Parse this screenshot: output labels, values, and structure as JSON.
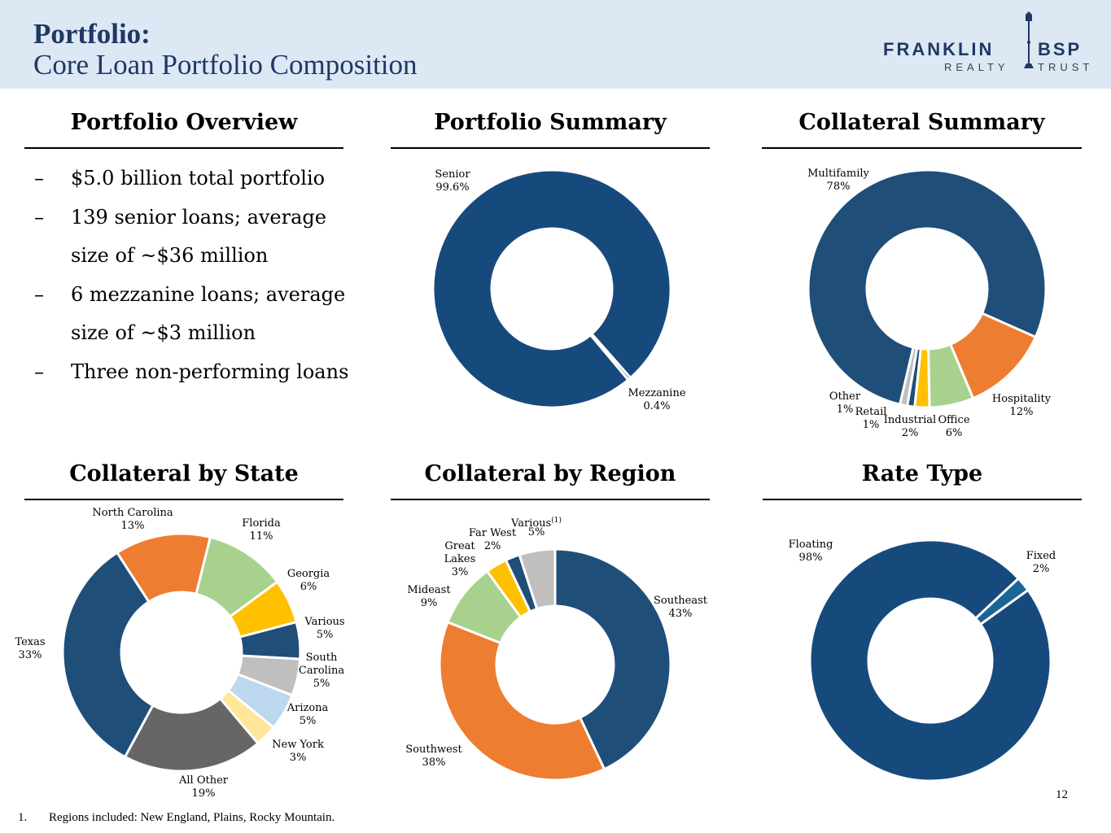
{
  "header": {
    "title_line1": "Portfolio:",
    "title_line2": "Core Loan Portfolio Composition",
    "logo_left": "FRANKLIN",
    "logo_right": "BSP",
    "logo_sub_left": "REALTY",
    "logo_sub_right": "TRUST"
  },
  "overview": {
    "title": "Portfolio Overview",
    "bullets": [
      "$5.0 billion total portfolio",
      "139 senior loans; average size of ~$36 million",
      "6 mezzanine loans; average size of ~$3 million",
      "Three non-performing loans"
    ],
    "dash": "–"
  },
  "chart_data": [
    {
      "id": "portfolio-summary",
      "type": "pie",
      "title": "Portfolio Summary",
      "slices": [
        {
          "label": [
            "Senior",
            "99.6%"
          ],
          "value": 99.6,
          "color": "#174a7c"
        },
        {
          "label": [
            "Mezzanine",
            "0.4%"
          ],
          "value": 0.4,
          "color": "#174a7c"
        }
      ]
    },
    {
      "id": "collateral-summary",
      "type": "pie",
      "title": "Collateral Summary",
      "slices": [
        {
          "label": [
            "Multifamily",
            "78%"
          ],
          "value": 78,
          "color": "#1f4e79"
        },
        {
          "label": [
            "Hospitality",
            "12%"
          ],
          "value": 12,
          "color": "#ed7d31"
        },
        {
          "label": [
            "Office",
            "6%"
          ],
          "value": 6,
          "color": "#a9d18e"
        },
        {
          "label": [
            "Industrial",
            "2%"
          ],
          "value": 2,
          "color": "#ffc000"
        },
        {
          "label": [
            "Retail",
            "1%"
          ],
          "value": 1,
          "color": "#1f4e79"
        },
        {
          "label": [
            "Other",
            "1%"
          ],
          "value": 1,
          "color": "#bfbfbf"
        }
      ]
    },
    {
      "id": "collateral-by-state",
      "type": "pie",
      "title": "Collateral by State",
      "slices": [
        {
          "label": [
            "Florida",
            "11%"
          ],
          "value": 11,
          "color": "#a9d18e"
        },
        {
          "label": [
            "Georgia",
            "6%"
          ],
          "value": 6,
          "color": "#ffc000"
        },
        {
          "label": [
            "Various",
            "5%"
          ],
          "value": 5,
          "color": "#1f4e79"
        },
        {
          "label": [
            "South",
            "Carolina",
            "5%"
          ],
          "value": 5,
          "color": "#bfbfbf"
        },
        {
          "label": [
            "Arizona",
            "5%"
          ],
          "value": 5,
          "color": "#bdd7ee"
        },
        {
          "label": [
            "New York",
            "3%"
          ],
          "value": 3,
          "color": "#ffe699"
        },
        {
          "label": [
            "All Other",
            "19%"
          ],
          "value": 19,
          "color": "#666666"
        },
        {
          "label": [
            "Texas",
            "33%"
          ],
          "value": 33,
          "color": "#1f4e79"
        },
        {
          "label": [
            "North Carolina",
            "13%"
          ],
          "value": 13,
          "color": "#ed7d31"
        }
      ]
    },
    {
      "id": "collateral-by-region",
      "type": "pie",
      "title": "Collateral by Region",
      "slices": [
        {
          "label": [
            "Southeast",
            "43%"
          ],
          "value": 43,
          "color": "#1f4e79"
        },
        {
          "label": [
            "Southwest",
            "38%"
          ],
          "value": 38,
          "color": "#ed7d31"
        },
        {
          "label": [
            "Mideast",
            "9%"
          ],
          "value": 9,
          "color": "#a9d18e"
        },
        {
          "label": [
            "Great",
            "Lakes",
            "3%"
          ],
          "value": 3,
          "color": "#ffc000"
        },
        {
          "label": [
            "Far West",
            "2%"
          ],
          "value": 2,
          "color": "#1f4e79"
        },
        {
          "label": [
            "Various",
            "5%"
          ],
          "value": 5,
          "color": "#bfbfbf",
          "sup": "(1)"
        }
      ]
    },
    {
      "id": "rate-type",
      "type": "pie",
      "title": "Rate Type",
      "slices": [
        {
          "label": [
            "Fixed",
            "2%"
          ],
          "value": 2,
          "color": "#1a6496"
        },
        {
          "label": [
            "Floating",
            "98%"
          ],
          "value": 98,
          "color": "#174a7c"
        }
      ]
    }
  ],
  "footnote": {
    "number": "1.",
    "text": "Regions included: New England, Plains, Rocky Mountain."
  },
  "page_number": "12"
}
